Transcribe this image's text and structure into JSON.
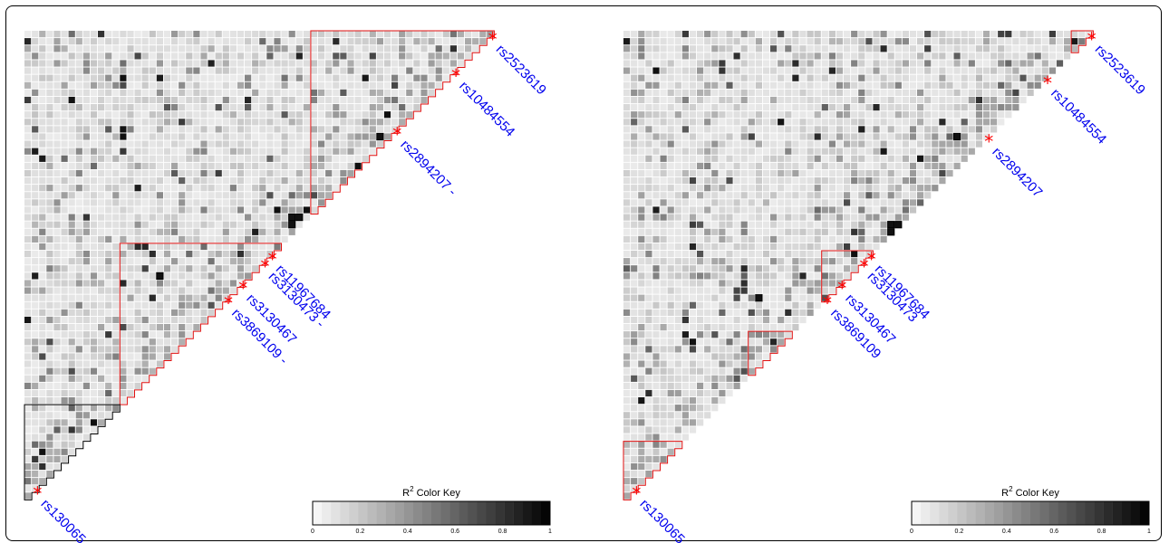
{
  "chart_data": [
    {
      "type": "heatmap",
      "panel": "left",
      "title": "",
      "snps": [
        {
          "label": "rs2523619"
        },
        {
          "label": "rs10484554"
        },
        {
          "label": "rs2894207 -"
        },
        {
          "label": "rs11967684"
        },
        {
          "label": "rs3130473 -"
        },
        {
          "label": "rs3130467"
        },
        {
          "label": "rs3869109 -"
        },
        {
          "label": "rs130065"
        }
      ],
      "color_key": {
        "title": "R",
        "title_sup": "2",
        "title_suffix": " Color Key",
        "range": [
          0,
          1
        ],
        "ticks": [
          "0",
          "0.2",
          "0.4",
          "0.6",
          "0.8",
          "1"
        ]
      },
      "blocks": [
        {
          "from_snp": "rs2894207 -",
          "to_snp": "rs2523619",
          "outline": "red"
        },
        {
          "from_snp": "rs3869109 -",
          "to_snp": "rs11967684",
          "outline": "red"
        },
        {
          "from_snp": "rs130065",
          "to_snp": "rs130065",
          "outline": "black"
        }
      ]
    },
    {
      "type": "heatmap",
      "panel": "right",
      "title": "",
      "snps": [
        {
          "label": "rs2523619"
        },
        {
          "label": "rs10484554"
        },
        {
          "label": "rs2894207"
        },
        {
          "label": "rs11967684"
        },
        {
          "label": "rs3130473"
        },
        {
          "label": "rs3130467"
        },
        {
          "label": "rs3869109"
        },
        {
          "label": "rs130065"
        }
      ],
      "color_key": {
        "title": "R",
        "title_sup": "2",
        "title_suffix": " Color Key",
        "range": [
          0,
          1
        ],
        "ticks": [
          "0",
          "0.2",
          "0.4",
          "0.6",
          "0.8",
          "1"
        ]
      },
      "blocks": [
        {
          "from_snp": "rs2523619",
          "to_snp": "rs2523619",
          "outline": "red"
        },
        {
          "from_snp": "rs3869109",
          "to_snp": "rs11967684",
          "outline": "red"
        },
        {
          "from_snp": "rs130065",
          "to_snp": "rs130065",
          "outline": "red"
        }
      ]
    }
  ]
}
